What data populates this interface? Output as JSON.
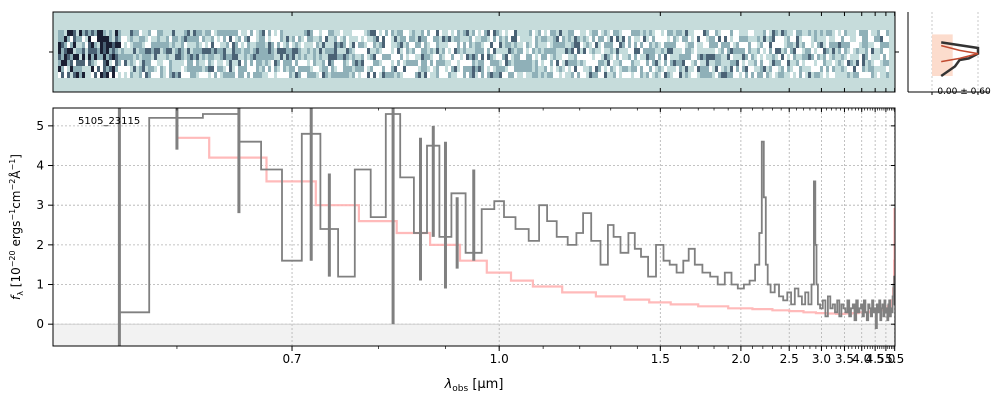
{
  "chart_data": [
    {
      "type": "heatmap",
      "panel": "2d-spectrum",
      "colormap": [
        "#1a1f33",
        "#4a6275",
        "#8fb0b8",
        "#c4dcdc",
        "#ffffff"
      ],
      "background_color": "#c6dcdb",
      "x_range_um": [
        0.52,
        5.52
      ],
      "tick_labels_shown": false
    },
    {
      "type": "line",
      "panel": "1d-spectrum",
      "annotation": "5105_23115",
      "xlabel_main": "λ",
      "xlabel_sub": "obs",
      "xlabel_unit": " [μm]",
      "ylabel": "f_λ [10^-20 ergs^-1cm^-2Å^-1]",
      "ylabel_parts": {
        "f": "f",
        "lambda_sub": "λ",
        "open": " [10",
        "exp1": "−20",
        "mid1": " ergs",
        "exp2": "−1",
        "mid2": "cm",
        "exp3": "−2",
        "mid3": "Å",
        "exp4": "−1",
        "close": "]"
      },
      "x_scale": "reciprocal",
      "xlim": [
        0.52,
        5.52
      ],
      "ylim": [
        -0.55,
        5.45
      ],
      "x_ticks": [
        0.7,
        1.0,
        1.5,
        2.0,
        2.5,
        3.0,
        3.5,
        4.0,
        4.5,
        5.0,
        5.5
      ],
      "x_tick_labels": [
        "0.7",
        "1.0",
        "1.5",
        "2.0",
        "2.5",
        "3.0",
        "3.5",
        "4.0",
        "4.5",
        "5.0",
        "5.5"
      ],
      "y_ticks": [
        0,
        1,
        2,
        3,
        4,
        5
      ],
      "grid": true,
      "series": [
        {
          "role": "data",
          "color": "#808080",
          "x": [
            0.56,
            0.6,
            0.64,
            0.66,
            0.68,
            0.7,
            0.72,
            0.74,
            0.76,
            0.78,
            0.8,
            0.82,
            0.84,
            0.86,
            0.88,
            0.9,
            0.92,
            0.95,
            0.98,
            1.0,
            1.02,
            1.05,
            1.08,
            1.1,
            1.12,
            1.15,
            1.18,
            1.2,
            1.22,
            1.25,
            1.28,
            1.3,
            1.32,
            1.35,
            1.38,
            1.4,
            1.43,
            1.46,
            1.5,
            1.53,
            1.56,
            1.6,
            1.63,
            1.66,
            1.7,
            1.75,
            1.8,
            1.85,
            1.9,
            1.95,
            2.0,
            2.05,
            2.1,
            2.15,
            2.18,
            2.2,
            2.22,
            2.24,
            2.26,
            2.3,
            2.35,
            2.4,
            2.45,
            2.5,
            2.55,
            2.6,
            2.65,
            2.7,
            2.75,
            2.8,
            2.85,
            2.88,
            2.9,
            2.92,
            2.95,
            3.0,
            3.05,
            3.1,
            3.15,
            3.2,
            3.25,
            3.3,
            3.35,
            3.4,
            3.45,
            3.5,
            3.55,
            3.6,
            3.65,
            3.7,
            3.75,
            3.8,
            3.85,
            3.9,
            3.95,
            4.0,
            4.05,
            4.1,
            4.15,
            4.2,
            4.25,
            4.3,
            4.35,
            4.4,
            4.45,
            4.5,
            4.55,
            4.6,
            4.65,
            4.7,
            4.75,
            4.8,
            4.85,
            4.9,
            4.95,
            5.0,
            5.05,
            5.1,
            5.15,
            5.2,
            5.25,
            5.3,
            5.35,
            5.4,
            5.45,
            5.48,
            5.5
          ],
          "y": [
            0.3,
            5.2,
            5.3,
            4.6,
            3.9,
            1.6,
            4.8,
            2.4,
            1.2,
            3.9,
            2.7,
            5.3,
            3.7,
            2.3,
            4.5,
            2.2,
            3.3,
            1.8,
            2.9,
            3.1,
            2.7,
            2.4,
            2.1,
            3.0,
            2.6,
            2.2,
            2.0,
            2.3,
            2.8,
            2.1,
            1.5,
            2.5,
            2.2,
            1.8,
            2.3,
            1.9,
            1.7,
            1.2,
            2.0,
            1.6,
            1.5,
            1.3,
            1.6,
            1.9,
            1.5,
            1.3,
            1.2,
            1.0,
            1.3,
            1.0,
            0.9,
            1.0,
            1.1,
            1.5,
            2.3,
            4.6,
            3.2,
            1.5,
            1.0,
            0.8,
            1.0,
            0.7,
            0.6,
            0.8,
            0.5,
            0.9,
            0.7,
            0.5,
            0.8,
            0.5,
            1.0,
            3.6,
            2.0,
            1.0,
            0.5,
            0.4,
            0.6,
            0.2,
            0.7,
            0.4,
            0.5,
            0.3,
            0.6,
            0.2,
            0.5,
            0.4,
            0.3,
            0.6,
            0.2,
            0.4,
            0.5,
            0.1,
            0.6,
            0.3,
            0.4,
            0.5,
            0.2,
            0.6,
            0.3,
            0.1,
            0.5,
            0.4,
            0.2,
            0.6,
            0.3,
            0.4,
            -0.1,
            0.5,
            0.3,
            0.6,
            0.1,
            0.4,
            0.5,
            0.2,
            0.6,
            0.3,
            0.4,
            0.1,
            0.5,
            0.6,
            0.2,
            0.4,
            0.3,
            0.7,
            1.0,
            1.2,
            0.5
          ],
          "errorbars": [
            {
              "x": 0.56,
              "y": 0.3,
              "lo": -0.55,
              "hi": 5.45
            },
            {
              "x": 0.6,
              "y": 5.0,
              "lo": 4.4,
              "hi": 5.45
            },
            {
              "x": 0.65,
              "y": 4.0,
              "lo": 2.8,
              "hi": 5.45
            },
            {
              "x": 0.72,
              "y": 4.5,
              "lo": 1.6,
              "hi": 5.45
            },
            {
              "x": 0.74,
              "y": 2.3,
              "lo": 1.2,
              "hi": 3.8
            },
            {
              "x": 0.82,
              "y": 4.8,
              "lo": 0.0,
              "hi": 5.45
            },
            {
              "x": 0.86,
              "y": 3.5,
              "lo": 1.1,
              "hi": 4.7
            },
            {
              "x": 0.88,
              "y": 3.2,
              "lo": 2.2,
              "hi": 5.0
            },
            {
              "x": 0.9,
              "y": 2.5,
              "lo": 0.9,
              "hi": 4.6
            },
            {
              "x": 0.92,
              "y": 2.4,
              "lo": 1.4,
              "hi": 3.2
            },
            {
              "x": 0.95,
              "y": 2.0,
              "lo": 1.6,
              "hi": 3.9
            }
          ]
        },
        {
          "role": "model",
          "color": "#ffb3b3",
          "x": [
            0.6,
            0.65,
            0.7,
            0.75,
            0.8,
            0.85,
            0.9,
            0.95,
            1.0,
            1.05,
            1.1,
            1.2,
            1.3,
            1.4,
            1.5,
            1.6,
            1.8,
            2.0,
            2.2,
            2.4,
            2.6,
            2.8,
            3.0,
            3.2,
            3.4,
            3.6,
            3.8,
            4.0,
            4.2,
            4.4,
            4.6,
            4.8,
            5.0,
            5.2,
            5.35,
            5.45,
            5.48,
            5.5
          ],
          "y": [
            4.7,
            4.2,
            3.6,
            3.0,
            2.6,
            2.3,
            2.0,
            1.6,
            1.3,
            1.1,
            0.95,
            0.8,
            0.7,
            0.62,
            0.55,
            0.5,
            0.45,
            0.4,
            0.38,
            0.35,
            0.33,
            0.3,
            0.28,
            0.27,
            0.26,
            0.27,
            0.28,
            0.3,
            0.3,
            0.32,
            0.33,
            0.35,
            0.38,
            0.45,
            0.6,
            0.9,
            1.6,
            2.9
          ]
        }
      ],
      "shaded_band": [
        -0.55,
        0.0
      ]
    },
    {
      "type": "line",
      "panel": "profile",
      "label": "0.00 ± 0.60",
      "x_ticks": [
        0,
        1
      ],
      "series": [
        {
          "role": "data",
          "color": "#333333",
          "x": [
            0.2,
            1.0,
            1.0,
            0.8,
            0.6,
            0.5,
            0.2
          ],
          "y": [
            0.62,
            0.55,
            0.48,
            0.42,
            0.4,
            0.32,
            0.2
          ]
        },
        {
          "role": "model",
          "color": "#c04a30",
          "x": [
            0.2,
            0.6,
            1.0,
            0.6,
            0.2
          ],
          "y": [
            0.58,
            0.52,
            0.48,
            0.42,
            0.38
          ]
        }
      ],
      "fill_color": "#fcd8c8"
    }
  ]
}
